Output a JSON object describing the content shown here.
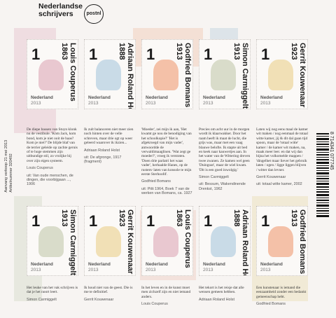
{
  "header": {
    "line1": "Nederlandse",
    "line2": "schrijvers",
    "logo": "postnl"
  },
  "side_text": {
    "line1": "Aanvang verkoop 21 mei 2013",
    "line2": "Artikelnummer 320492"
  },
  "barcode_number": "8 714341 077745",
  "stamps": [
    {
      "value": "1",
      "name": "Louis Couperus",
      "years": "1863",
      "country": "Nederland",
      "year": "2013",
      "color": "#e9c8d0"
    },
    {
      "value": "1",
      "name": "Adriaan Roland Holst",
      "years": "1888",
      "country": "Nederland",
      "year": "2013",
      "color": "#c9dbe7"
    },
    {
      "value": "1",
      "name": "Godfried Bomans",
      "years": "1913",
      "country": "Nederland",
      "year": "2013",
      "color": "#f4c1a8"
    },
    {
      "value": "1",
      "name": "Simon Carmiggelt",
      "years": "1913",
      "country": "Nederland",
      "year": "2013",
      "color": "#d9dcca"
    },
    {
      "value": "1",
      "name": "Gerrit Kouwenaar",
      "years": "1923",
      "country": "Nederland",
      "year": "2013",
      "color": "#f1e0b6"
    },
    {
      "value": "1",
      "name": "Simon Carmiggelt",
      "years": "1913",
      "country": "Nederland",
      "year": "2013",
      "color": "#d9dcca"
    },
    {
      "value": "1",
      "name": "Gerrit Kouwenaar",
      "years": "1923",
      "country": "Nederland",
      "year": "2013",
      "color": "#f1e0b6"
    },
    {
      "value": "1",
      "name": "Louis Couperus",
      "years": "1863",
      "country": "Nederland",
      "year": "2013",
      "color": "#e9c8d0"
    },
    {
      "value": "1",
      "name": "Adriaan Roland Holst",
      "years": "1888",
      "country": "Nederland",
      "year": "2013",
      "color": "#c9dbe7"
    },
    {
      "value": "1",
      "name": "Godfried Bomans",
      "years": "1913",
      "country": "Nederland",
      "year": "2013",
      "color": "#f4c1a8"
    }
  ],
  "texts": [
    {
      "body": "De diepe bassen van Stuyn klonk nu de vestibule. 'Kom Jack, kom bond, kom je niet ooit de baas? Kom je niet?' De blijde blaf van de terrier geleide op zachte geruis of te hoge stemmen zijn uitbundige stil, zo vrolijke bij over zijn eigen systeem.",
      "author": "Louis Couperus",
      "source": "uit: Van oude menschen, de dingen, die voorbijgaan ..., 1906"
    },
    {
      "body": "Ik zult balanceren niet meer zien noch hinten over de velle schreven, maar drie ogt op weer geleerd waarover ik ikzien...",
      "author": "Adriaan Roland Holst",
      "source": "uit: De afgronge, 1917 (fragment)"
    },
    {
      "body": "'Moeder', zei mijn ik aan, 'Het kwamt ge nou de benodiging van het schoolkopie?' 'Het is afgekroegd van mijn vader', antwoordde de verwaldimaaglinen. 'Wat zegt ge moeder?', vroeg ik verstoten. 'Doen drie parlatri het waas vader', herhaalde Hanes, op de rustenv laten van konsole te mijn eerste Sterhoofd'.",
      "author": "Godfried Bomans",
      "source": "uit: Pitti 1964, Boek 7 van de werken van Bomans, ca. 1927"
    },
    {
      "body": "Precies om acht uur in de morgen wordt ik klaarwakker. Door het raam heeft ik maat de lucht, die grijs was, maar met een vaag blauwe belofte. Ik stapte uit bed en keek naar kauwertjes aan. In het water van de Wittering dreven twee zwanen. Ze kamen wel geen 'Duingoat', maar de wiel kwam. 'Dit is een goed inwolgig.'",
      "author": "Simon Carmiggelt",
      "source": "uit: Bessum, Wakendinende Drenkst, 1962"
    },
    {
      "body": "Laten wij nog eens maal de kamer wit maken / nog eenmaal de totaal witte kamer, jij & dit dal gaan tijd spoon, maar de 'totaal witte' kamer / de kamer wit maken, na, maak meer leer. en dat wij dan bijna het volkomelde mappen / 'dingelhet maar liever het gebruik laten / ogen / ligge liggen blijven / witter dan levner.",
      "author": "Gerrit Kouwenaar",
      "source": "uit: totaal witte kamer, 2002"
    },
    {
      "body": "Het leuke van het vak schrijven is dat je het noort leert.",
      "author": "Simon Carmiggelt",
      "source": ""
    },
    {
      "body": "Ik houd niet van de geest. Die is me te definitief.",
      "author": "Gerrit Kouwenaar",
      "source": ""
    },
    {
      "body": "In het leven en in de kunst moet men zichzelf zijn en niet iemand anders.",
      "author": "Louis Couperus",
      "source": ""
    },
    {
      "body": "Het tekort is het reisje dat alle wensen gemeen hebben.",
      "author": "Adriaan Roland Holst",
      "source": ""
    },
    {
      "body": "Een kunstenaar is iemand die eenzaamheid zonder een bedankt gemeenschap hebt.",
      "author": "Godfried Bomans",
      "source": ""
    }
  ]
}
